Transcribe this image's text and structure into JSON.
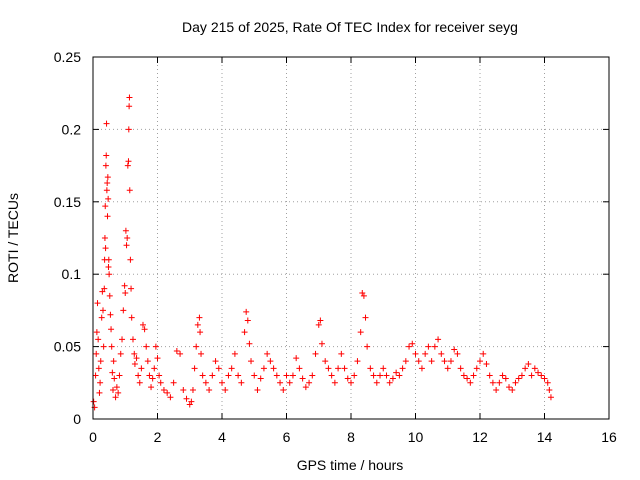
{
  "chart_data": {
    "type": "scatter",
    "title": "Day 215 of 2025, Rate Of TEC Index for receiver seyg",
    "xlabel": "GPS time / hours",
    "ylabel": "ROTI / TECUs",
    "xlim": [
      0,
      16
    ],
    "ylim": [
      0,
      0.25
    ],
    "x_ticks": [
      0,
      2,
      4,
      6,
      8,
      10,
      12,
      14,
      16
    ],
    "x_tick_labels": [
      "0",
      "2",
      "4",
      "6",
      "8",
      "10",
      "12",
      "14",
      "16"
    ],
    "y_ticks": [
      0,
      0.05,
      0.1,
      0.15,
      0.2,
      0.25
    ],
    "y_tick_labels": [
      "0",
      "0.05",
      "0.1",
      "0.15",
      "0.2",
      "0.25"
    ],
    "grid": true,
    "legend": "none",
    "marker": "plus",
    "color": "#ff0000",
    "series": [
      {
        "points": [
          [
            0.02,
            0.012
          ],
          [
            0.05,
            0.008
          ],
          [
            0.08,
            0.03
          ],
          [
            0.1,
            0.045
          ],
          [
            0.12,
            0.06
          ],
          [
            0.14,
            0.08
          ],
          [
            0.16,
            0.055
          ],
          [
            0.18,
            0.035
          ],
          [
            0.2,
            0.018
          ],
          [
            0.22,
            0.025
          ],
          [
            0.24,
            0.04
          ],
          [
            0.27,
            0.07
          ],
          [
            0.29,
            0.088
          ],
          [
            0.31,
            0.075
          ],
          [
            0.33,
            0.05
          ],
          [
            0.35,
            0.09
          ],
          [
            0.36,
            0.11
          ],
          [
            0.37,
            0.125
          ],
          [
            0.38,
            0.147
          ],
          [
            0.39,
            0.118
          ],
          [
            0.4,
            0.175
          ],
          [
            0.41,
            0.182
          ],
          [
            0.42,
            0.204
          ],
          [
            0.43,
            0.158
          ],
          [
            0.44,
            0.163
          ],
          [
            0.45,
            0.14
          ],
          [
            0.46,
            0.167
          ],
          [
            0.47,
            0.152
          ],
          [
            0.48,
            0.105
          ],
          [
            0.49,
            0.11
          ],
          [
            0.5,
            0.1
          ],
          [
            0.52,
            0.085
          ],
          [
            0.54,
            0.072
          ],
          [
            0.56,
            0.062
          ],
          [
            0.58,
            0.05
          ],
          [
            0.6,
            0.032
          ],
          [
            0.62,
            0.02
          ],
          [
            0.64,
            0.04
          ],
          [
            0.66,
            0.028
          ],
          [
            0.7,
            0.015
          ],
          [
            0.74,
            0.022
          ],
          [
            0.78,
            0.018
          ],
          [
            0.82,
            0.03
          ],
          [
            0.86,
            0.045
          ],
          [
            0.9,
            0.055
          ],
          [
            0.94,
            0.075
          ],
          [
            0.98,
            0.092
          ],
          [
            1.0,
            0.087
          ],
          [
            1.02,
            0.13
          ],
          [
            1.04,
            0.12
          ],
          [
            1.06,
            0.125
          ],
          [
            1.08,
            0.175
          ],
          [
            1.1,
            0.178
          ],
          [
            1.11,
            0.2
          ],
          [
            1.12,
            0.216
          ],
          [
            1.13,
            0.222
          ],
          [
            1.14,
            0.158
          ],
          [
            1.16,
            0.11
          ],
          [
            1.18,
            0.09
          ],
          [
            1.2,
            0.07
          ],
          [
            1.24,
            0.055
          ],
          [
            1.28,
            0.045
          ],
          [
            1.3,
            0.038
          ],
          [
            1.35,
            0.042
          ],
          [
            1.4,
            0.03
          ],
          [
            1.45,
            0.025
          ],
          [
            1.5,
            0.035
          ],
          [
            1.55,
            0.065
          ],
          [
            1.6,
            0.062
          ],
          [
            1.65,
            0.05
          ],
          [
            1.7,
            0.04
          ],
          [
            1.75,
            0.03
          ],
          [
            1.8,
            0.022
          ],
          [
            1.85,
            0.028
          ],
          [
            1.9,
            0.035
          ],
          [
            1.95,
            0.05
          ],
          [
            2.0,
            0.042
          ],
          [
            2.05,
            0.03
          ],
          [
            2.1,
            0.025
          ],
          [
            2.2,
            0.02
          ],
          [
            2.3,
            0.018
          ],
          [
            2.4,
            0.015
          ],
          [
            2.5,
            0.025
          ],
          [
            2.6,
            0.047
          ],
          [
            2.7,
            0.045
          ],
          [
            2.8,
            0.02
          ],
          [
            2.9,
            0.014
          ],
          [
            3.0,
            0.01
          ],
          [
            3.05,
            0.012
          ],
          [
            3.1,
            0.02
          ],
          [
            3.15,
            0.035
          ],
          [
            3.2,
            0.05
          ],
          [
            3.25,
            0.065
          ],
          [
            3.3,
            0.07
          ],
          [
            3.32,
            0.06
          ],
          [
            3.35,
            0.045
          ],
          [
            3.4,
            0.03
          ],
          [
            3.5,
            0.025
          ],
          [
            3.6,
            0.02
          ],
          [
            3.7,
            0.03
          ],
          [
            3.8,
            0.04
          ],
          [
            3.9,
            0.035
          ],
          [
            4.0,
            0.025
          ],
          [
            4.1,
            0.02
          ],
          [
            4.2,
            0.03
          ],
          [
            4.3,
            0.035
          ],
          [
            4.4,
            0.045
          ],
          [
            4.5,
            0.03
          ],
          [
            4.6,
            0.025
          ],
          [
            4.7,
            0.06
          ],
          [
            4.75,
            0.074
          ],
          [
            4.8,
            0.068
          ],
          [
            4.85,
            0.052
          ],
          [
            4.9,
            0.04
          ],
          [
            5.0,
            0.03
          ],
          [
            5.1,
            0.02
          ],
          [
            5.2,
            0.028
          ],
          [
            5.3,
            0.035
          ],
          [
            5.4,
            0.045
          ],
          [
            5.5,
            0.04
          ],
          [
            5.6,
            0.035
          ],
          [
            5.7,
            0.03
          ],
          [
            5.8,
            0.025
          ],
          [
            5.9,
            0.02
          ],
          [
            6.0,
            0.03
          ],
          [
            6.1,
            0.025
          ],
          [
            6.2,
            0.03
          ],
          [
            6.3,
            0.042
          ],
          [
            6.4,
            0.035
          ],
          [
            6.5,
            0.028
          ],
          [
            6.6,
            0.022
          ],
          [
            6.7,
            0.025
          ],
          [
            6.8,
            0.03
          ],
          [
            6.9,
            0.045
          ],
          [
            7.0,
            0.065
          ],
          [
            7.05,
            0.068
          ],
          [
            7.1,
            0.052
          ],
          [
            7.2,
            0.04
          ],
          [
            7.3,
            0.035
          ],
          [
            7.4,
            0.03
          ],
          [
            7.5,
            0.025
          ],
          [
            7.6,
            0.035
          ],
          [
            7.7,
            0.045
          ],
          [
            7.8,
            0.035
          ],
          [
            7.9,
            0.028
          ],
          [
            8.0,
            0.025
          ],
          [
            8.1,
            0.03
          ],
          [
            8.2,
            0.04
          ],
          [
            8.3,
            0.06
          ],
          [
            8.35,
            0.087
          ],
          [
            8.4,
            0.085
          ],
          [
            8.45,
            0.07
          ],
          [
            8.5,
            0.05
          ],
          [
            8.6,
            0.035
          ],
          [
            8.7,
            0.03
          ],
          [
            8.8,
            0.025
          ],
          [
            8.9,
            0.03
          ],
          [
            9.0,
            0.035
          ],
          [
            9.1,
            0.03
          ],
          [
            9.2,
            0.025
          ],
          [
            9.3,
            0.028
          ],
          [
            9.4,
            0.032
          ],
          [
            9.5,
            0.03
          ],
          [
            9.6,
            0.035
          ],
          [
            9.7,
            0.04
          ],
          [
            9.8,
            0.05
          ],
          [
            9.9,
            0.052
          ],
          [
            10.0,
            0.045
          ],
          [
            10.1,
            0.04
          ],
          [
            10.2,
            0.035
          ],
          [
            10.3,
            0.045
          ],
          [
            10.4,
            0.05
          ],
          [
            10.5,
            0.04
          ],
          [
            10.6,
            0.05
          ],
          [
            10.7,
            0.055
          ],
          [
            10.8,
            0.045
          ],
          [
            10.9,
            0.04
          ],
          [
            11.0,
            0.035
          ],
          [
            11.1,
            0.04
          ],
          [
            11.2,
            0.048
          ],
          [
            11.3,
            0.045
          ],
          [
            11.4,
            0.035
          ],
          [
            11.5,
            0.03
          ],
          [
            11.6,
            0.028
          ],
          [
            11.7,
            0.025
          ],
          [
            11.8,
            0.03
          ],
          [
            11.9,
            0.035
          ],
          [
            12.0,
            0.04
          ],
          [
            12.1,
            0.045
          ],
          [
            12.2,
            0.038
          ],
          [
            12.3,
            0.03
          ],
          [
            12.4,
            0.025
          ],
          [
            12.5,
            0.02
          ],
          [
            12.6,
            0.025
          ],
          [
            12.7,
            0.03
          ],
          [
            12.8,
            0.028
          ],
          [
            12.9,
            0.022
          ],
          [
            13.0,
            0.02
          ],
          [
            13.1,
            0.025
          ],
          [
            13.2,
            0.028
          ],
          [
            13.3,
            0.03
          ],
          [
            13.4,
            0.035
          ],
          [
            13.5,
            0.038
          ],
          [
            13.6,
            0.03
          ],
          [
            13.7,
            0.035
          ],
          [
            13.8,
            0.032
          ],
          [
            13.9,
            0.03
          ],
          [
            14.0,
            0.028
          ],
          [
            14.1,
            0.025
          ],
          [
            14.15,
            0.02
          ],
          [
            14.2,
            0.015
          ]
        ]
      }
    ]
  }
}
